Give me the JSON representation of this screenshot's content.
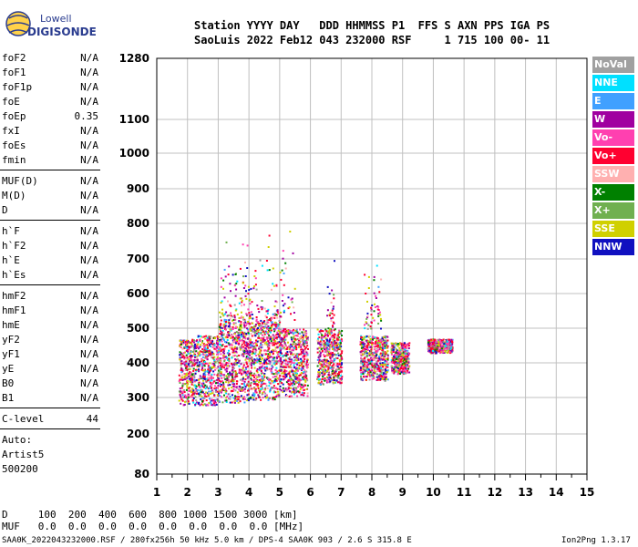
{
  "logo": {
    "line1": "Lowell",
    "line2": "DIGISONDE"
  },
  "header": {
    "line1": "Station YYYY DAY   DDD HHMMSS P1  FFS S AXN PPS IGA PS",
    "line2": "SaoLuis 2022 Feb12 043 232000 RSF     1 715 100 00- 11"
  },
  "params": {
    "group1": [
      {
        "name": "foF2",
        "value": "N/A"
      },
      {
        "name": "foF1",
        "value": "N/A"
      },
      {
        "name": "foF1p",
        "value": "N/A"
      },
      {
        "name": "foE",
        "value": "N/A"
      },
      {
        "name": "foEp",
        "value": "0.35"
      },
      {
        "name": "fxI",
        "value": "N/A"
      },
      {
        "name": "foEs",
        "value": "N/A"
      },
      {
        "name": "fmin",
        "value": "N/A"
      }
    ],
    "group2": [
      {
        "name": "MUF(D)",
        "value": "N/A"
      },
      {
        "name": "M(D)",
        "value": "N/A"
      },
      {
        "name": "D",
        "value": "N/A"
      }
    ],
    "group3": [
      {
        "name": "h`F",
        "value": "N/A"
      },
      {
        "name": "h`F2",
        "value": "N/A"
      },
      {
        "name": "h`E",
        "value": "N/A"
      },
      {
        "name": "h`Es",
        "value": "N/A"
      }
    ],
    "group4": [
      {
        "name": "hmF2",
        "value": "N/A"
      },
      {
        "name": "hmF1",
        "value": "N/A"
      },
      {
        "name": "hmE",
        "value": "N/A"
      },
      {
        "name": "yF2",
        "value": "N/A"
      },
      {
        "name": "yF1",
        "value": "N/A"
      },
      {
        "name": "yE",
        "value": "N/A"
      },
      {
        "name": "B0",
        "value": "N/A"
      },
      {
        "name": "B1",
        "value": "N/A"
      }
    ],
    "group5": [
      {
        "name": "C-level",
        "value": "44"
      }
    ],
    "auto": [
      "Auto:",
      "Artist5",
      "500200"
    ]
  },
  "legend": [
    {
      "label": "NoVal",
      "color": "#a0a0a0"
    },
    {
      "label": "NNE",
      "color": "#00e0ff"
    },
    {
      "label": "E",
      "color": "#40a0ff"
    },
    {
      "label": "W",
      "color": "#a000a0"
    },
    {
      "label": "Vo-",
      "color": "#ff40b0"
    },
    {
      "label": "Vo+",
      "color": "#ff0030"
    },
    {
      "label": "SSW",
      "color": "#ffb0b0"
    },
    {
      "label": "X-",
      "color": "#008000"
    },
    {
      "label": "X+",
      "color": "#70b050"
    },
    {
      "label": "SSE",
      "color": "#d0d000"
    },
    {
      "label": "NNW",
      "color": "#1010c0"
    }
  ],
  "bottom": {
    "dline": "D     100  200  400  600  800 1000 1500 3000 [km]",
    "mufline": "MUF   0.0  0.0  0.0  0.0  0.0  0.0  0.0  0.0 [MHz]",
    "footer_left": "SAA0K_2022043232000.RSF / 280fx256h 50 kHz 5.0 km / DPS-4 SAA0K 903 / 2.6 S 315.8 E",
    "footer_right": "Ion2Png 1.3.17"
  },
  "chart_data": {
    "type": "scatter",
    "xlabel": "",
    "ylabel": "",
    "xlim": [
      1,
      15
    ],
    "ylim": [
      80,
      1280
    ],
    "x_ticks": [
      1,
      2,
      3,
      4,
      5,
      6,
      7,
      8,
      9,
      10,
      11,
      12,
      13,
      14,
      15
    ],
    "y_ticks": [
      80,
      200,
      300,
      400,
      500,
      600,
      700,
      800,
      900,
      1000,
      1100,
      1280
    ],
    "y_scale": "nonlinear-ionogram",
    "grid": true,
    "legend_placement": "right",
    "trace_clusters": [
      {
        "x_range": [
          1.7,
          2.3
        ],
        "y_range": [
          280,
          470
        ]
      },
      {
        "x_range": [
          2.3,
          3.0
        ],
        "y_range": [
          280,
          480
        ]
      },
      {
        "x_range": [
          3.0,
          4.0
        ],
        "y_range": [
          285,
          520
        ]
      },
      {
        "x_range": [
          4.0,
          5.0
        ],
        "y_range": [
          295,
          520
        ]
      },
      {
        "x_range": [
          5.0,
          5.9
        ],
        "y_range": [
          305,
          500
        ]
      },
      {
        "x_range": [
          6.2,
          7.0
        ],
        "y_range": [
          340,
          500
        ]
      },
      {
        "x_range": [
          7.6,
          8.5
        ],
        "y_range": [
          350,
          480
        ]
      },
      {
        "x_range": [
          8.6,
          9.2
        ],
        "y_range": [
          370,
          460
        ]
      },
      {
        "x_range": [
          9.8,
          10.6
        ],
        "y_range": [
          430,
          470
        ]
      }
    ],
    "sparse_spread": [
      {
        "x_range": [
          3.0,
          5.5
        ],
        "y_range": [
          520,
          800
        ]
      },
      {
        "x_range": [
          7.7,
          8.3
        ],
        "y_range": [
          500,
          740
        ]
      },
      {
        "x_range": [
          6.5,
          6.8
        ],
        "y_range": [
          500,
          700
        ]
      }
    ]
  }
}
